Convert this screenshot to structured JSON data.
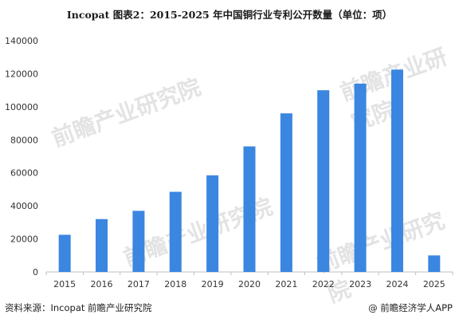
{
  "title": "Incopat  图表2：2015-2025 年中国铜行业专利公开数量（单位：项）",
  "footer": {
    "source": "资料来源：Incopat 前瞻产业研究院",
    "credit": "@ 前瞻经济学人APP"
  },
  "watermark": "前瞻产业研究院",
  "colors": {
    "bar": "#3a86e0",
    "axis": "#bfbfbf",
    "text": "#333333"
  },
  "chart_data": {
    "type": "bar",
    "title": "Incopat  图表2：2015-2025 年中国铜行业专利公开数量（单位：项）",
    "categories": [
      "2015",
      "2016",
      "2017",
      "2018",
      "2019",
      "2020",
      "2021",
      "2022",
      "2023",
      "2024",
      "2025"
    ],
    "values": [
      22500,
      32000,
      37000,
      48500,
      58500,
      76000,
      96000,
      110000,
      114000,
      122500,
      10000
    ],
    "ylim": [
      0,
      140000
    ],
    "yticks": [
      "0",
      "20000",
      "40000",
      "60000",
      "80000",
      "100000",
      "120000",
      "140000"
    ],
    "grid": false,
    "legend": "none"
  }
}
